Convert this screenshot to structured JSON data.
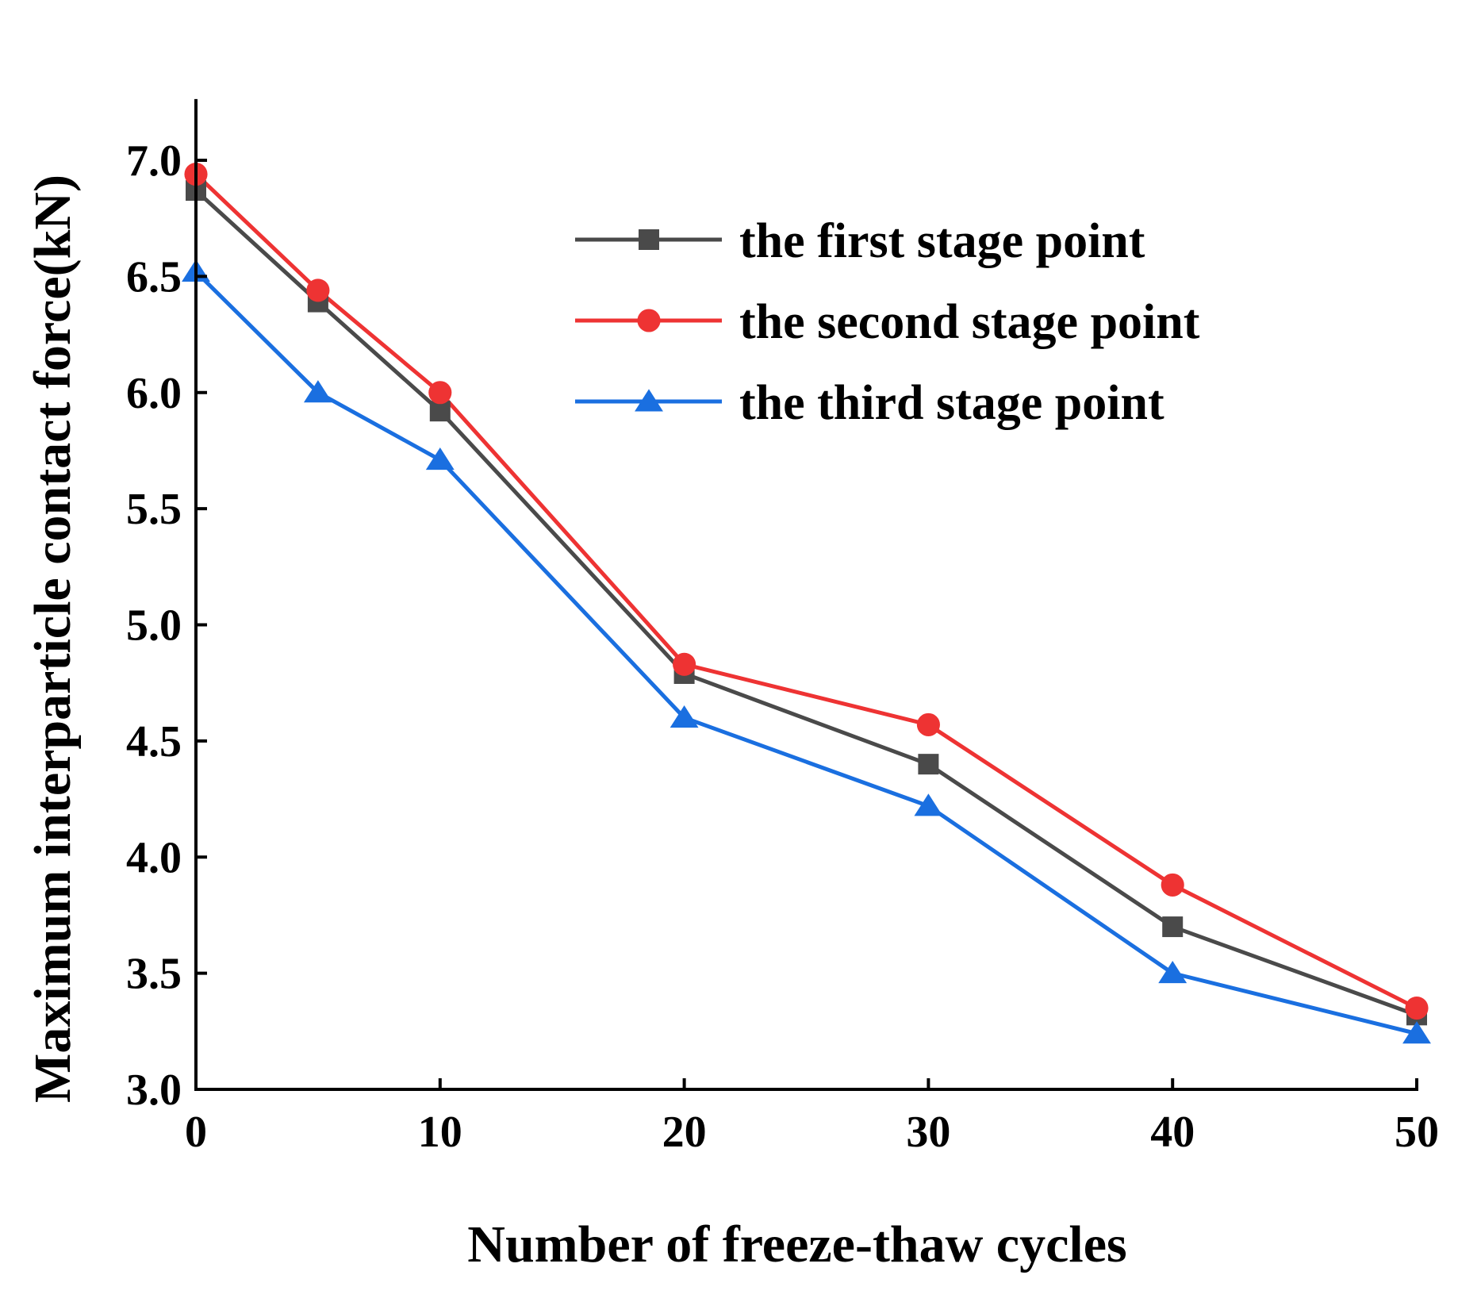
{
  "chart_data": {
    "type": "line",
    "title": "",
    "xlabel": "Number of freeze-thaw cycles",
    "ylabel": "Maximum interparticle contact force(kN)",
    "xlim": [
      0,
      50
    ],
    "ylim": [
      3.0,
      7.25
    ],
    "xticks": [
      0,
      10,
      20,
      30,
      40,
      50
    ],
    "xtick_labels": [
      "0",
      "10",
      "20",
      "30",
      "40",
      "50"
    ],
    "yticks": [
      3.0,
      3.5,
      4.0,
      4.5,
      5.0,
      5.5,
      6.0,
      6.5,
      7.0
    ],
    "ytick_labels": [
      "3.0",
      "3.5",
      "4.0",
      "4.5",
      "5.0",
      "5.5",
      "6.0",
      "6.5",
      "7.0"
    ],
    "grid": false,
    "legend_position": "top-right",
    "x": [
      0,
      5,
      10,
      20,
      30,
      40,
      50
    ],
    "series": [
      {
        "name": "the first stage point",
        "color": "#4a4a4a",
        "marker": "square",
        "values": [
          6.87,
          6.39,
          5.92,
          4.79,
          4.4,
          3.7,
          3.32
        ]
      },
      {
        "name": "the second stage point",
        "color": "#ee3333",
        "marker": "circle",
        "values": [
          6.94,
          6.44,
          6.0,
          4.83,
          4.57,
          3.88,
          3.35
        ]
      },
      {
        "name": "the third stage point",
        "color": "#1a6fe0",
        "marker": "triangle",
        "values": [
          6.52,
          6.0,
          5.71,
          4.6,
          4.22,
          3.5,
          3.24
        ]
      }
    ]
  }
}
